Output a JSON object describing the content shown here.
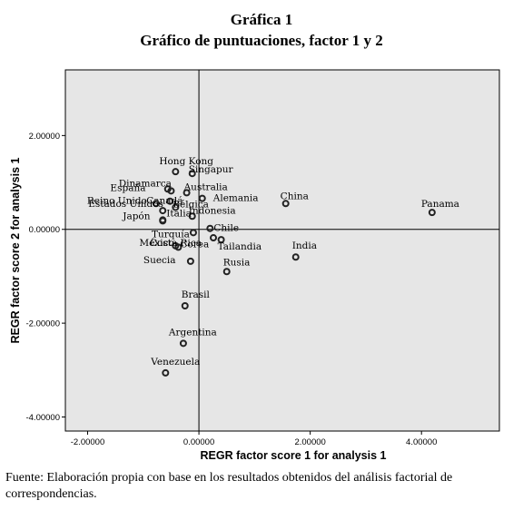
{
  "figure": {
    "title": "Gráfica 1",
    "subtitle": "Gráfico de puntuaciones, factor 1 y 2",
    "source": "Fuente: Elaboración propia con base en los resultados obtenidos del análisis factorial de correspondencias."
  },
  "chart_data": {
    "type": "scatter",
    "xlabel": "REGR factor score   1 for analysis 1",
    "ylabel": "REGR factor score   2 for analysis 1",
    "xlim": [
      -2.4,
      5.4
    ],
    "ylim": [
      -4.3,
      3.4
    ],
    "xticks": [
      -2,
      0,
      2,
      4
    ],
    "yticks": [
      2,
      0,
      -2,
      -4
    ],
    "xtick_labels": [
      "-2.00000",
      "0.00000",
      "2.00000",
      "4.00000"
    ],
    "ytick_labels": [
      "2.00000",
      "0.00000",
      "-2.00000",
      "-4.00000"
    ],
    "reference_lines": {
      "x": 0,
      "y": 0
    },
    "background": "#e6e6e6",
    "grid": false,
    "points": [
      {
        "label": "Hong Kong",
        "x": -0.42,
        "y": 1.23
      },
      {
        "label": "Singapur",
        "x": -0.12,
        "y": 1.19
      },
      {
        "label": "Dinamarca",
        "x": -0.56,
        "y": 0.86
      },
      {
        "label": "Australia",
        "x": -0.22,
        "y": 0.78
      },
      {
        "label": "España",
        "x": -0.5,
        "y": 0.82
      },
      {
        "label": "Canadá",
        "x": -0.52,
        "y": 0.6
      },
      {
        "label": "Alemania",
        "x": 0.06,
        "y": 0.66
      },
      {
        "label": "China",
        "x": 1.56,
        "y": 0.55
      },
      {
        "label": "Panama",
        "x": 4.19,
        "y": 0.36
      },
      {
        "label": "Reino Unido",
        "x": -0.77,
        "y": 0.55
      },
      {
        "label": "Bélgica",
        "x": -0.42,
        "y": 0.47
      },
      {
        "label": "Estados Unidos",
        "x": -0.65,
        "y": 0.4
      },
      {
        "label": "Indonesia",
        "x": -0.12,
        "y": 0.28
      },
      {
        "label": "Japón",
        "x": -0.65,
        "y": 0.18
      },
      {
        "label": "Italia",
        "x": -0.65,
        "y": 0.2
      },
      {
        "label": "Chile",
        "x": 0.2,
        "y": 0.02
      },
      {
        "label": "Turquía",
        "x": -0.1,
        "y": -0.07
      },
      {
        "label": "Tailandia",
        "x": 0.4,
        "y": -0.22
      },
      {
        "label": "India",
        "x": 1.74,
        "y": -0.59
      },
      {
        "label": "México",
        "x": -0.42,
        "y": -0.35
      },
      {
        "label": "Corea",
        "x": -0.37,
        "y": -0.38
      },
      {
        "label": "Suecia",
        "x": -0.15,
        "y": -0.68
      },
      {
        "label": "Rusia",
        "x": 0.5,
        "y": -0.9
      },
      {
        "label": "Costa Rica",
        "x": 0.26,
        "y": -0.18
      },
      {
        "label": "Brasil",
        "x": -0.25,
        "y": -1.63
      },
      {
        "label": "Argentina",
        "x": -0.28,
        "y": -2.43
      },
      {
        "label": "Venezuela",
        "x": -0.6,
        "y": -3.06
      }
    ]
  }
}
